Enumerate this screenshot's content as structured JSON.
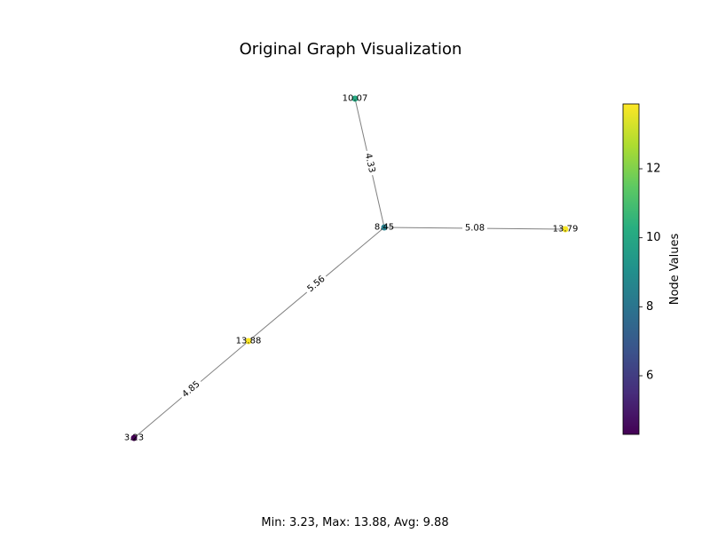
{
  "figure": {
    "title": "Original Graph Visualization",
    "summary": "Min: 3.23, Max: 13.88, Avg: 9.88"
  },
  "graph": {
    "nodes": [
      {
        "id": "n1",
        "label": "10.07",
        "value": 10.07
      },
      {
        "id": "n2",
        "label": "8.45",
        "value": 8.45
      },
      {
        "id": "n3",
        "label": "13.79",
        "value": 13.79
      },
      {
        "id": "n4",
        "label": "13.88",
        "value": 13.88
      },
      {
        "id": "n5",
        "label": "3.23",
        "value": 3.23
      }
    ],
    "edges": [
      {
        "source": "n1",
        "target": "n2",
        "label": "4.33",
        "weight": 4.33
      },
      {
        "source": "n2",
        "target": "n3",
        "label": "5.08",
        "weight": 5.08
      },
      {
        "source": "n2",
        "target": "n4",
        "label": "5.56",
        "weight": 5.56
      },
      {
        "source": "n4",
        "target": "n5",
        "label": "4.85",
        "weight": 4.85
      }
    ],
    "edge_color": "#808080"
  },
  "colorbar": {
    "label": "Node Values",
    "colormap": "viridis",
    "min": 4.3,
    "max": 13.88,
    "ticks": [
      6,
      8,
      10,
      12
    ],
    "tick_labels": [
      "6",
      "8",
      "10",
      "12"
    ]
  }
}
